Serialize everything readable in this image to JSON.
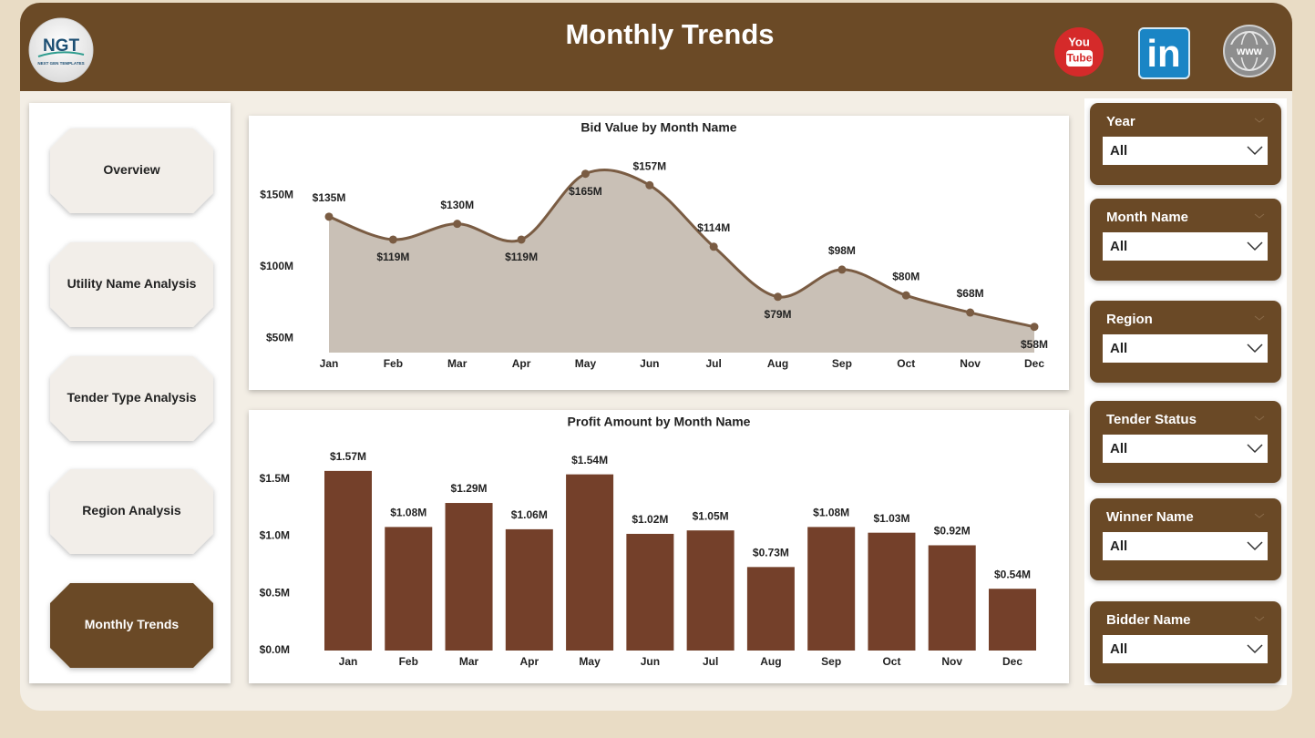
{
  "header": {
    "title": "Monthly Trends",
    "logo": {
      "text": "NGT",
      "tagline": "NEXT GEN TEMPLATES"
    },
    "social": {
      "youtube": [
        "You",
        "Tube"
      ],
      "linkedin": "in",
      "website": "www"
    }
  },
  "nav": [
    "Overview",
    "Utility Name Analysis",
    "Tender Type Analysis",
    "Region Analysis",
    "Monthly Trends"
  ],
  "filters": [
    {
      "label": "Year",
      "value": "All"
    },
    {
      "label": "Month Name",
      "value": "All"
    },
    {
      "label": "Region",
      "value": "All"
    },
    {
      "label": "Tender Status",
      "value": "All"
    },
    {
      "label": "Winner Name",
      "value": "All"
    },
    {
      "label": "Bidder Name",
      "value": "All"
    }
  ],
  "chart_data": [
    {
      "type": "line",
      "title": "Bid Value by Month Name",
      "categories": [
        "Jan",
        "Feb",
        "Mar",
        "Apr",
        "May",
        "Jun",
        "Jul",
        "Aug",
        "Sep",
        "Oct",
        "Nov",
        "Dec"
      ],
      "values": [
        135,
        119,
        130,
        119,
        165,
        157,
        114,
        79,
        98,
        80,
        68,
        58
      ],
      "value_labels": [
        "$135M",
        "$119M",
        "$130M",
        "$119M",
        "$165M",
        "$157M",
        "$114M",
        "$79M",
        "$98M",
        "$80M",
        "$68M",
        "$58M"
      ],
      "color": "#7a5c43",
      "area_color": "#c9c0b6",
      "ylim": [
        40,
        175
      ],
      "yticks": [
        {
          "value": 50,
          "label": "$50M"
        },
        {
          "value": 100,
          "label": "$100M"
        },
        {
          "value": 150,
          "label": "$150M"
        }
      ],
      "grid": false
    },
    {
      "type": "bar",
      "title": "Profit Amount by Month Name",
      "categories": [
        "Jan",
        "Feb",
        "Mar",
        "Apr",
        "May",
        "Jun",
        "Jul",
        "Aug",
        "Sep",
        "Oct",
        "Nov",
        "Dec"
      ],
      "values": [
        1.57,
        1.08,
        1.29,
        1.06,
        1.54,
        1.02,
        1.05,
        0.73,
        1.08,
        1.03,
        0.92,
        0.54
      ],
      "value_labels": [
        "$1.57M",
        "$1.08M",
        "$1.29M",
        "$1.06M",
        "$1.54M",
        "$1.02M",
        "$1.05M",
        "$0.73M",
        "$1.08M",
        "$1.03M",
        "$0.92M",
        "$0.54M"
      ],
      "color": "#74402a",
      "ylim": [
        0,
        1.8
      ],
      "yticks": [
        {
          "value": 0,
          "label": "$0.0M"
        },
        {
          "value": 0.5,
          "label": "$0.5M"
        },
        {
          "value": 1.0,
          "label": "$1.0M"
        },
        {
          "value": 1.5,
          "label": "$1.5M"
        }
      ],
      "grid": false
    }
  ]
}
